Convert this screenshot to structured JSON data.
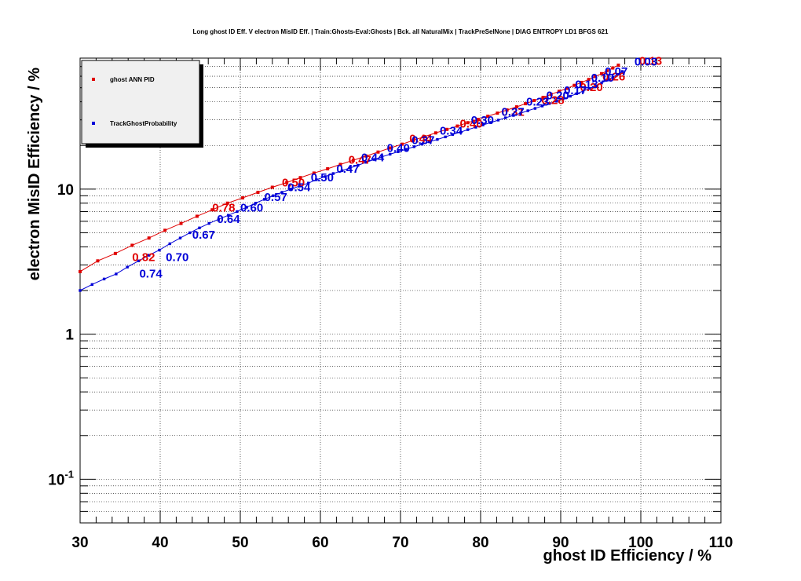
{
  "chart_data": {
    "type": "scatter",
    "title": "Long ghost ID Eff. V electron MisID Eff. | Train:Ghosts-Eval:Ghosts | Bck. all NaturalMix | TrackPreSelNone | DIAG ENTROPY LD1 BFGS 621",
    "xlabel": "ghost ID Efficiency / %",
    "ylabel": "electron MisID Efficiency / %",
    "xlim": [
      30,
      110
    ],
    "ylim": [
      0.05,
      80
    ],
    "x_scale": "linear",
    "y_scale": "log",
    "grid": true,
    "legend_position": "top-left",
    "x_ticks": [
      "30",
      "40",
      "50",
      "60",
      "70",
      "80",
      "90",
      "100",
      "110"
    ],
    "y_ticks": [
      {
        "label": "10",
        "value": 10
      },
      {
        "label": "1",
        "value": 1
      },
      {
        "label": "10^{-1}",
        "value": 0.1
      }
    ],
    "series": [
      {
        "name": "ghost ANN PID",
        "color": "#e00000",
        "x": [
          30.0,
          32.2,
          34.4,
          36.5,
          38.6,
          40.6,
          42.6,
          44.6,
          46.5,
          48.4,
          50.3,
          52.2,
          54.0,
          55.8,
          57.5,
          59.2,
          60.9,
          62.5,
          64.1,
          65.7,
          67.2,
          68.7,
          70.2,
          71.6,
          73.0,
          74.4,
          75.8,
          77.1,
          78.4,
          79.7,
          80.9,
          82.1,
          83.3,
          84.5,
          85.6,
          86.7,
          87.8,
          88.8,
          89.8,
          90.8,
          91.7,
          92.6,
          93.5,
          94.3,
          95.1,
          95.8,
          96.5,
          97.2
        ],
        "y": [
          2.7,
          3.2,
          3.6,
          4.1,
          4.6,
          5.2,
          5.8,
          6.5,
          7.2,
          8.0,
          8.7,
          9.5,
          10.3,
          11.1,
          12.0,
          12.9,
          13.8,
          14.8,
          15.8,
          16.9,
          18.0,
          19.2,
          20.4,
          21.7,
          23.0,
          24.4,
          25.8,
          27.2,
          28.7,
          30.2,
          31.8,
          33.4,
          35.1,
          36.9,
          38.8,
          40.8,
          42.9,
          45.0,
          47.2,
          49.5,
          51.9,
          54.4,
          57.0,
          59.7,
          62.5,
          65.4,
          68.4,
          71.5
        ]
      },
      {
        "name": "TrackGhostProbability",
        "color": "#0000d8",
        "x": [
          30.0,
          31.5,
          33.0,
          34.5,
          35.9,
          37.3,
          38.6,
          39.9,
          41.2,
          42.5,
          43.7,
          44.9,
          46.1,
          47.3,
          48.5,
          49.6,
          50.8,
          51.9,
          53.0,
          54.1,
          55.2,
          56.3,
          57.4,
          58.5,
          59.5,
          60.6,
          61.6,
          62.7,
          63.7,
          64.7,
          65.7,
          66.7,
          67.7,
          68.7,
          69.7,
          70.7,
          71.7,
          72.7,
          73.6,
          74.6,
          75.6,
          76.5,
          77.5,
          78.4,
          79.4,
          80.3,
          81.3,
          82.2,
          83.1,
          84.1,
          85.0,
          85.9,
          86.8,
          87.7,
          88.6,
          89.5,
          90.3,
          91.2,
          92.0,
          92.8,
          93.6,
          94.4,
          95.1,
          95.8,
          96.5,
          97.1,
          97.7
        ],
        "y": [
          2.0,
          2.2,
          2.4,
          2.6,
          2.9,
          3.2,
          3.5,
          3.8,
          4.2,
          4.6,
          5.0,
          5.4,
          5.8,
          6.2,
          6.6,
          7.0,
          7.5,
          8.0,
          8.5,
          9.0,
          9.5,
          10.0,
          10.5,
          11.0,
          11.6,
          12.2,
          12.8,
          13.4,
          14.0,
          14.6,
          15.3,
          16.0,
          16.7,
          17.4,
          18.1,
          18.8,
          19.6,
          20.4,
          21.2,
          22.0,
          22.9,
          23.8,
          24.7,
          25.7,
          26.7,
          27.7,
          28.8,
          29.9,
          31.0,
          32.2,
          33.4,
          34.7,
          36.0,
          37.4,
          38.9,
          40.4,
          42.0,
          43.7,
          45.5,
          47.4,
          49.4,
          51.6,
          53.9,
          56.4,
          59.0,
          61.8,
          64.7
        ]
      }
    ],
    "annotations": [
      {
        "series": "ghost ANN PID",
        "text": "0.82",
        "x": 36.5,
        "y": 3.2
      },
      {
        "series": "ghost ANN PID",
        "text": "0.78",
        "x": 46.5,
        "y": 7.0
      },
      {
        "series": "ghost ANN PID",
        "text": "0.50",
        "x": 55.2,
        "y": 10.4
      },
      {
        "series": "ghost ANN PID",
        "text": "0.47",
        "x": 63.5,
        "y": 15.0
      },
      {
        "series": "ghost ANN PID",
        "text": "0.44",
        "x": 71.1,
        "y": 21.0
      },
      {
        "series": "ghost ANN PID",
        "text": "0.40",
        "x": 77.4,
        "y": 26.5
      },
      {
        "series": "ghost ANN PID",
        "text": "0.31",
        "x": 82.6,
        "y": 32.0
      },
      {
        "series": "ghost ANN PID",
        "text": "0.28",
        "x": 87.6,
        "y": 38.5
      },
      {
        "series": "ghost ANN PID",
        "text": "0.20",
        "x": 92.4,
        "y": 47.5
      },
      {
        "series": "ghost ANN PID",
        "text": "0.26",
        "x": 95.2,
        "y": 56.0
      },
      {
        "series": "ghost ANN PID",
        "text": "0.13",
        "x": 99.8,
        "y": 72.0
      },
      {
        "series": "TrackGhostProbability",
        "text": "0.74",
        "x": 37.4,
        "y": 2.45
      },
      {
        "series": "TrackGhostProbability",
        "text": "0.70",
        "x": 40.7,
        "y": 3.2
      },
      {
        "series": "TrackGhostProbability",
        "text": "0.67",
        "x": 44.0,
        "y": 4.55
      },
      {
        "series": "TrackGhostProbability",
        "text": "0.64",
        "x": 47.1,
        "y": 5.85
      },
      {
        "series": "TrackGhostProbability",
        "text": "0.60",
        "x": 50.0,
        "y": 7.0
      },
      {
        "series": "TrackGhostProbability",
        "text": "0.57",
        "x": 53.0,
        "y": 8.3
      },
      {
        "series": "TrackGhostProbability",
        "text": "0.54",
        "x": 55.9,
        "y": 9.7
      },
      {
        "series": "TrackGhostProbability",
        "text": "0.50",
        "x": 58.8,
        "y": 11.3
      },
      {
        "series": "TrackGhostProbability",
        "text": "0.47",
        "x": 62.0,
        "y": 13.0
      },
      {
        "series": "TrackGhostProbability",
        "text": "0.44",
        "x": 65.1,
        "y": 15.5
      },
      {
        "series": "TrackGhostProbability",
        "text": "0.40",
        "x": 68.3,
        "y": 18.0
      },
      {
        "series": "TrackGhostProbability",
        "text": "0.37",
        "x": 71.4,
        "y": 20.4
      },
      {
        "series": "TrackGhostProbability",
        "text": "0.34",
        "x": 74.9,
        "y": 23.8
      },
      {
        "series": "TrackGhostProbability",
        "text": "0.30",
        "x": 78.8,
        "y": 28.1
      },
      {
        "series": "TrackGhostProbability",
        "text": "0.27",
        "x": 82.6,
        "y": 32.1
      },
      {
        "series": "TrackGhostProbability",
        "text": "0.23",
        "x": 85.7,
        "y": 37.6
      },
      {
        "series": "TrackGhostProbability",
        "text": "0.20",
        "x": 88.2,
        "y": 41.7
      },
      {
        "series": "TrackGhostProbability",
        "text": "0.17",
        "x": 90.4,
        "y": 45.0
      },
      {
        "series": "TrackGhostProbability",
        "text": "0.13",
        "x": 91.8,
        "y": 49.5
      },
      {
        "series": "TrackGhostProbability",
        "text": "0.10",
        "x": 93.8,
        "y": 55.0
      },
      {
        "series": "TrackGhostProbability",
        "text": "0.07",
        "x": 95.5,
        "y": 61.0
      },
      {
        "series": "TrackGhostProbability",
        "text": "0.03",
        "x": 99.2,
        "y": 71.0
      }
    ]
  }
}
